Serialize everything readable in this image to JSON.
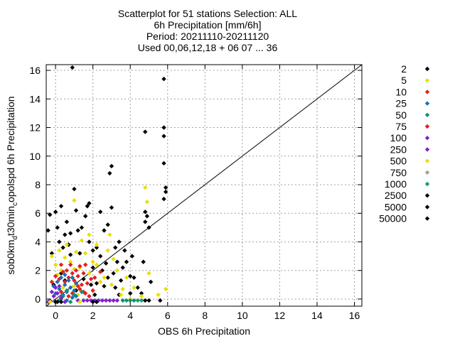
{
  "chart_data": {
    "type": "scatter",
    "title": [
      "Scatterplot for   51 stations Selection: ALL",
      "6h Precipitation [mm/6h]",
      "Period: 20211110-20211120",
      "Used 00,06,12,18 + 06 07 ... 36"
    ],
    "xlabel": "OBS 6h Precipitation",
    "ylabel_main": "sob0km",
    "ylabel_sub1": "d",
    "ylabel_mid": "t30min",
    "ylabel_sub2": "c",
    "ylabel_end": "opolspd 6h Precipitation",
    "xlim": [
      -0.5,
      16.4
    ],
    "ylim": [
      -0.5,
      16.4
    ],
    "x_ticks": [
      0,
      2,
      4,
      6,
      8,
      10,
      12,
      14,
      16
    ],
    "y_ticks": [
      0,
      2,
      4,
      6,
      8,
      10,
      12,
      14,
      16
    ],
    "x_tick_labels": [
      "0",
      "2",
      "4",
      "6",
      "8",
      "10",
      "12",
      "14",
      "16"
    ],
    "y_tick_labels": [
      "0",
      "2",
      "4",
      "6",
      "8",
      "10",
      "12",
      "14",
      "16"
    ],
    "grid": true,
    "diagonal": true,
    "legend_position": "right",
    "series": [
      {
        "name": "2",
        "color": "#000000",
        "points": [
          [
            -0.4,
            4.8
          ],
          [
            -0.3,
            5.9
          ],
          [
            -0.2,
            3.2
          ],
          [
            -0.1,
            1.0
          ],
          [
            0.0,
            6.1
          ],
          [
            0.1,
            5.0
          ],
          [
            0.2,
            4.0
          ],
          [
            0.3,
            6.5
          ],
          [
            0.4,
            3.6
          ],
          [
            0.5,
            4.5
          ],
          [
            0.6,
            5.4
          ],
          [
            0.7,
            3.8
          ],
          [
            0.8,
            4.6
          ],
          [
            0.9,
            16.2
          ],
          [
            1.0,
            7.7
          ],
          [
            1.1,
            6.2
          ],
          [
            1.2,
            4.8
          ],
          [
            1.3,
            3.2
          ],
          [
            1.4,
            5.0
          ],
          [
            1.6,
            5.8
          ],
          [
            1.7,
            6.5
          ],
          [
            1.8,
            4.0
          ],
          [
            2.0,
            3.4
          ],
          [
            2.2,
            3.6
          ],
          [
            2.4,
            3.0
          ],
          [
            2.5,
            2.0
          ],
          [
            2.6,
            4.8
          ],
          [
            2.7,
            2.5
          ],
          [
            2.8,
            5.2
          ],
          [
            2.9,
            8.8
          ],
          [
            3.0,
            9.3
          ],
          [
            3.0,
            6.4
          ],
          [
            3.1,
            1.8
          ],
          [
            3.2,
            3.6
          ],
          [
            3.3,
            2.6
          ],
          [
            3.4,
            4.0
          ],
          [
            3.5,
            1.3
          ],
          [
            3.6,
            2.2
          ],
          [
            3.8,
            2.6
          ],
          [
            4.0,
            1.6
          ],
          [
            4.2,
            1.5
          ],
          [
            4.4,
            0.8
          ],
          [
            4.6,
            0.4
          ],
          [
            4.7,
            2.6
          ],
          [
            4.8,
            11.7
          ],
          [
            4.9,
            5.8
          ],
          [
            5.0,
            5.0
          ],
          [
            5.1,
            1.2
          ],
          [
            5.8,
            15.4
          ],
          [
            5.8,
            12.0
          ],
          [
            5.8,
            11.4
          ],
          [
            5.8,
            9.5
          ],
          [
            5.9,
            7.8
          ],
          [
            5.9,
            7.5
          ],
          [
            5.8,
            7.0
          ],
          [
            4.8,
            6.1
          ],
          [
            4.8,
            5.4
          ],
          [
            0.5,
            1.3
          ],
          [
            1.5,
            1.4
          ],
          [
            2.2,
            1.1
          ],
          [
            2.6,
            0.9
          ],
          [
            3.4,
            0.3
          ],
          [
            4.0,
            0.4
          ],
          [
            2.4,
            6.1
          ],
          [
            1.8,
            6.7
          ],
          [
            0.8,
            3.1
          ],
          [
            2.0,
            2.2
          ],
          [
            2.8,
            1.5
          ],
          [
            3.2,
            0.8
          ],
          [
            1.1,
            0.6
          ],
          [
            0.3,
            1.8
          ],
          [
            4.1,
            3.0
          ],
          [
            3.7,
            3.4
          ],
          [
            2.1,
            0.3
          ],
          [
            1.9,
            1.0
          ]
        ]
      },
      {
        "name": "5",
        "color": "#e8e000",
        "points": [
          [
            -0.2,
            3.0
          ],
          [
            0.0,
            2.4
          ],
          [
            0.1,
            1.7
          ],
          [
            0.2,
            3.4
          ],
          [
            0.3,
            2.0
          ],
          [
            0.5,
            2.9
          ],
          [
            0.6,
            3.8
          ],
          [
            0.8,
            2.6
          ],
          [
            1.0,
            2.1
          ],
          [
            1.1,
            3.3
          ],
          [
            1.3,
            2.2
          ],
          [
            1.4,
            4.1
          ],
          [
            1.6,
            3.2
          ],
          [
            1.8,
            1.8
          ],
          [
            2.0,
            2.6
          ],
          [
            2.2,
            2.4
          ],
          [
            2.4,
            1.2
          ],
          [
            2.6,
            1.5
          ],
          [
            2.8,
            3.4
          ],
          [
            3.0,
            1.0
          ],
          [
            3.1,
            2.8
          ],
          [
            3.3,
            2.0
          ],
          [
            3.5,
            0.3
          ],
          [
            3.6,
            0.7
          ],
          [
            3.8,
            1.5
          ],
          [
            4.0,
            0.0
          ],
          [
            4.2,
            0.8
          ],
          [
            4.6,
            0.2
          ],
          [
            4.8,
            7.8
          ],
          [
            4.9,
            6.8
          ],
          [
            5.0,
            1.8
          ],
          [
            5.5,
            0.3
          ],
          [
            5.9,
            0.7
          ],
          [
            1.0,
            6.9
          ],
          [
            1.8,
            4.5
          ],
          [
            2.2,
            3.8
          ],
          [
            0.4,
            0.8
          ],
          [
            1.2,
            0.3
          ],
          [
            2.9,
            4.5
          ]
        ]
      },
      {
        "name": "10",
        "color": "#e02020",
        "points": [
          [
            -0.2,
            1.2
          ],
          [
            0.0,
            1.6
          ],
          [
            0.2,
            1.4
          ],
          [
            0.3,
            2.4
          ],
          [
            0.4,
            1.9
          ],
          [
            0.5,
            1.2
          ],
          [
            0.6,
            2.0
          ],
          [
            0.7,
            1.5
          ],
          [
            0.8,
            2.4
          ],
          [
            0.9,
            1.8
          ],
          [
            1.0,
            1.3
          ],
          [
            1.1,
            2.0
          ],
          [
            1.2,
            1.6
          ],
          [
            1.3,
            2.3
          ],
          [
            1.4,
            1.0
          ],
          [
            1.5,
            1.8
          ],
          [
            1.6,
            2.4
          ],
          [
            1.7,
            1.1
          ],
          [
            1.9,
            1.4
          ],
          [
            2.0,
            0.6
          ],
          [
            1.8,
            0.2
          ],
          [
            1.5,
            0.5
          ],
          [
            1.2,
            0.9
          ],
          [
            0.9,
            0.4
          ],
          [
            2.4,
            1.9
          ],
          [
            2.1,
            1.5
          ]
        ]
      },
      {
        "name": "25",
        "color": "#1a6eb0",
        "points": [
          [
            -0.1,
            0.9
          ],
          [
            0.0,
            0.4
          ],
          [
            0.1,
            1.2
          ],
          [
            0.2,
            0.7
          ],
          [
            0.3,
            1.5
          ],
          [
            0.4,
            0.3
          ],
          [
            0.5,
            1.0
          ],
          [
            0.6,
            0.5
          ],
          [
            0.7,
            1.3
          ],
          [
            0.8,
            0.8
          ],
          [
            0.9,
            0.1
          ],
          [
            0.9,
            1.5
          ],
          [
            1.0,
            0.6
          ],
          [
            1.1,
            1.1
          ],
          [
            0.6,
            -0.1
          ],
          [
            0.3,
            0.0
          ],
          [
            0.5,
            1.7
          ],
          [
            1.1,
            0.2
          ]
        ]
      },
      {
        "name": "50",
        "color": "#109070",
        "points": [
          [
            0.0,
            -0.2
          ],
          [
            0.2,
            -0.1
          ],
          [
            0.4,
            0.2
          ],
          [
            0.6,
            0.6
          ],
          [
            0.8,
            -0.2
          ],
          [
            1.0,
            0.3
          ],
          [
            1.2,
            -0.1
          ],
          [
            1.4,
            0.5
          ],
          [
            3.6,
            -0.1
          ],
          [
            3.8,
            -0.1
          ],
          [
            4.0,
            -0.1
          ],
          [
            4.2,
            -0.1
          ]
        ]
      },
      {
        "name": "75",
        "color": "#e02020",
        "points": [
          [
            0.3,
            0.5
          ],
          [
            0.7,
            0.2
          ],
          [
            1.3,
            0.7
          ],
          [
            1.6,
            0.4
          ]
        ]
      },
      {
        "name": "100",
        "color": "#8020d0",
        "points": [
          [
            -0.3,
            -0.1
          ],
          [
            -0.2,
            0.5
          ],
          [
            -0.1,
            0.2
          ],
          [
            0.0,
            0.8
          ],
          [
            0.1,
            0.4
          ],
          [
            0.2,
            0.9
          ],
          [
            0.3,
            0.1
          ],
          [
            0.0,
            -0.2
          ],
          [
            1.2,
            -0.1
          ],
          [
            1.5,
            -0.1
          ],
          [
            1.7,
            -0.1
          ],
          [
            1.9,
            -0.1
          ],
          [
            2.1,
            -0.1
          ],
          [
            2.3,
            -0.1
          ],
          [
            2.5,
            -0.1
          ],
          [
            2.7,
            -0.1
          ],
          [
            2.9,
            -0.1
          ],
          [
            3.1,
            -0.1
          ],
          [
            3.3,
            -0.1
          ]
        ]
      },
      {
        "name": "250",
        "color": "#8020d0",
        "points": [
          [
            -0.4,
            -0.2
          ],
          [
            0.5,
            -0.2
          ]
        ]
      },
      {
        "name": "500",
        "color": "#e8e000",
        "points": [
          [
            -0.3,
            -0.2
          ],
          [
            1.0,
            0.9
          ],
          [
            1.3,
            -0.2
          ]
        ]
      },
      {
        "name": "750",
        "color": "#a0a0a0",
        "points": []
      },
      {
        "name": "1000",
        "color": "#10a070",
        "points": [
          [
            4.4,
            -0.1
          ],
          [
            4.6,
            -0.1
          ]
        ]
      },
      {
        "name": "2500",
        "color": "#000000",
        "points": [
          [
            0.0,
            -0.2
          ],
          [
            0.1,
            -0.2
          ],
          [
            0.3,
            -0.2
          ],
          [
            2.0,
            -0.2
          ],
          [
            2.2,
            -0.2
          ],
          [
            4.8,
            -0.1
          ],
          [
            5.0,
            -0.1
          ],
          [
            5.6,
            -0.1
          ]
        ]
      },
      {
        "name": "5000",
        "color": "#000000",
        "points": []
      },
      {
        "name": "50000",
        "color": "#000000",
        "points": []
      }
    ]
  }
}
